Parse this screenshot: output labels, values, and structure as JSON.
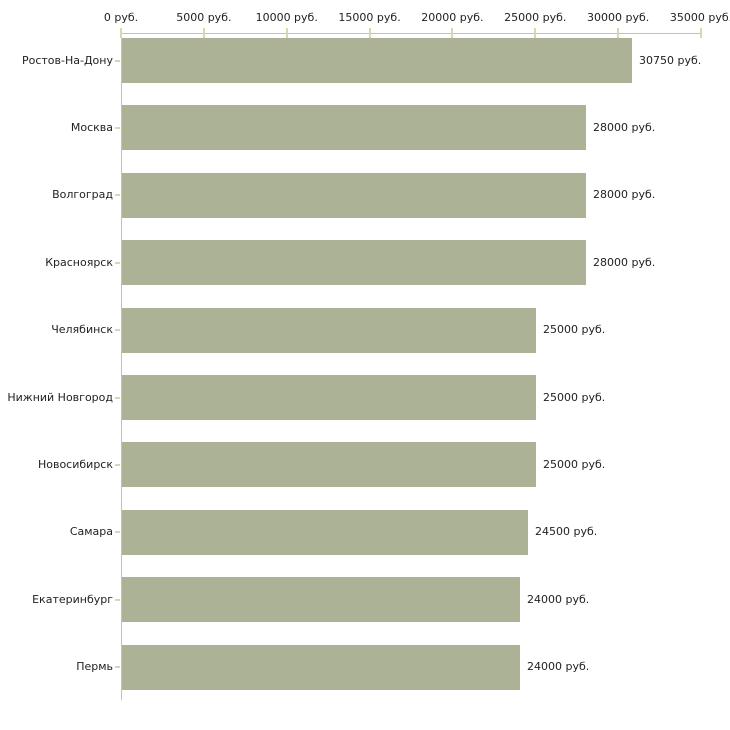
{
  "chart_data": {
    "type": "bar",
    "orientation": "horizontal",
    "title": "",
    "xlabel": "",
    "ylabel": "",
    "categories": [
      "Ростов-На-Дону",
      "Москва",
      "Волгоград",
      "Красноярск",
      "Челябинск",
      "Нижний Новгород",
      "Новосибирск",
      "Самара",
      "Екатеринбург",
      "Пермь"
    ],
    "values": [
      30750,
      28000,
      28000,
      28000,
      25000,
      25000,
      25000,
      24500,
      24000,
      24000
    ],
    "value_labels": [
      "30750 руб.",
      "28000 руб.",
      "28000 руб.",
      "28000 руб.",
      "25000 руб.",
      "25000 руб.",
      "25000 руб.",
      "24500 руб.",
      "24000 руб.",
      "24000 руб."
    ],
    "x_axis": {
      "position": "top",
      "min": 0,
      "max": 35000,
      "tick_step": 5000,
      "tick_values": [
        0,
        5000,
        10000,
        15000,
        20000,
        25000,
        30000,
        35000
      ],
      "tick_labels": [
        "0 руб.",
        "5000 руб.",
        "10000 руб.",
        "15000 руб.",
        "20000 руб.",
        "25000 руб.",
        "30000 руб.",
        "35000 руб."
      ]
    },
    "grid": false,
    "legend": false,
    "colors": {
      "bar": "#abb296",
      "axis_line": "#c0c0c0",
      "tick_mark": "#d6d8b2",
      "text": "#222222",
      "background": "#ffffff"
    }
  }
}
